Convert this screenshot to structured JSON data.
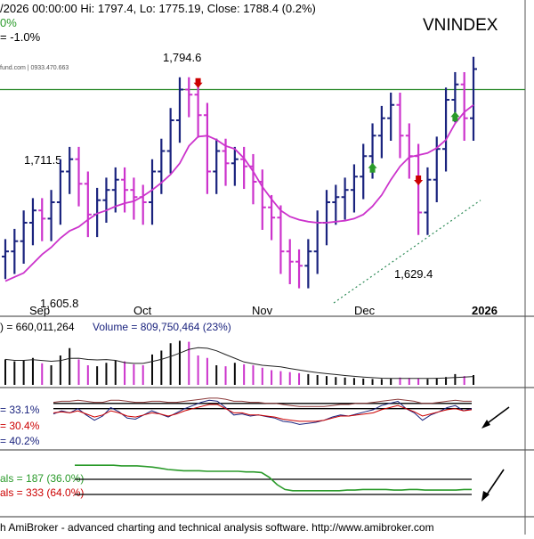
{
  "header": {
    "ohlc_text": "/2026 00:00:00 Hi: 1797.4, Lo: 1775.19, Close: 1788.4 (0.2%)",
    "ohlc_suffix": "0%",
    "change_text": "= -1.0%",
    "source_text": "fund.com | 0933.470.663",
    "ticker": "VNINDEX"
  },
  "footer": {
    "text": "h AmiBroker - advanced charting and technical analysis software. http://www.amibroker.com"
  },
  "colors": {
    "up_bar": "#1a237e",
    "down_bar": "#cc33cc",
    "ma_line": "#cc33cc",
    "resistance": "#2e8b2e",
    "trend": "#2e8b57",
    "arrow_down": "#cc0000",
    "arrow_up": "#2a9a2a",
    "volume_bar": "#0a0a0a",
    "volume_avg": "#222222",
    "panel_sep": "#333333"
  },
  "chart_data": [
    {
      "type": "candlestick",
      "title": "VNINDEX",
      "x_labels": [
        "Sep",
        "Oct",
        "Nov",
        "Dec",
        "2026"
      ],
      "ylim": [
        1560,
        1840
      ],
      "resistance_level": 1770,
      "annotations": [
        "1,794.6",
        "1,711.5",
        "1,629.4",
        "1,605.8"
      ],
      "ma_values": [
        1583,
        1587,
        1591,
        1600,
        1609,
        1616,
        1625,
        1632,
        1636,
        1643,
        1649,
        1652,
        1656,
        1659,
        1661,
        1666,
        1672,
        1679,
        1687,
        1698,
        1715,
        1724,
        1725,
        1721,
        1715,
        1712,
        1703,
        1690,
        1675,
        1663,
        1652,
        1646,
        1643,
        1641,
        1640,
        1640,
        1641,
        1642,
        1644,
        1648,
        1656,
        1667,
        1682,
        1695,
        1704,
        1706,
        1708,
        1713,
        1721,
        1737,
        1748,
        1755
      ],
      "closes": [
        1612,
        1622,
        1640,
        1652,
        1644,
        1660,
        1690,
        1702,
        1678,
        1648,
        1662,
        1672,
        1682,
        1672,
        1665,
        1660,
        1690,
        1710,
        1740,
        1770,
        1765,
        1745,
        1690,
        1710,
        1698,
        1702,
        1695,
        1680,
        1655,
        1645,
        1612,
        1602,
        1598,
        1612,
        1640,
        1660,
        1665,
        1672,
        1685,
        1705,
        1725,
        1742,
        1755,
        1725,
        1705,
        1650,
        1682,
        1712,
        1760,
        1775,
        1742,
        1790
      ],
      "arrows": [
        {
          "dir": "down",
          "index": 21
        },
        {
          "dir": "up",
          "index": 40
        },
        {
          "dir": "down",
          "index": 45
        },
        {
          "dir": "up",
          "index": 49
        }
      ]
    },
    {
      "type": "bar",
      "title": "Volume",
      "legend_left": ") = 660,011,264",
      "legend_label": "Volume = 809,750,464 (23%)",
      "volume_values": [
        52,
        48,
        50,
        55,
        44,
        40,
        60,
        75,
        52,
        40,
        38,
        45,
        50,
        48,
        42,
        40,
        62,
        70,
        85,
        90,
        88,
        60,
        55,
        40,
        38,
        45,
        42,
        40,
        35,
        30,
        28,
        26,
        24,
        22,
        20,
        18,
        16,
        15,
        14,
        13,
        12,
        12,
        13,
        15,
        14,
        13,
        12,
        14,
        16,
        22,
        18,
        20
      ]
    },
    {
      "type": "line",
      "title": "Oscillators",
      "legend": [
        "= 33.1%",
        "= 30.4%",
        "= 40.2%"
      ],
      "series": [
        {
          "values": [
            60,
            66,
            62,
            70,
            58,
            48,
            56,
            72,
            64,
            52,
            50,
            58,
            66,
            60,
            54,
            62,
            70,
            76,
            82,
            86,
            84,
            72,
            58,
            60,
            56,
            58,
            55,
            52,
            46,
            44,
            40,
            42,
            44,
            48,
            54,
            58,
            56,
            60,
            64,
            68,
            76,
            80,
            84,
            70,
            62,
            48,
            58,
            64,
            72,
            76,
            66,
            70
          ]
        },
        {
          "values": [
            62,
            64,
            62,
            66,
            60,
            54,
            58,
            66,
            62,
            56,
            54,
            58,
            62,
            60,
            56,
            60,
            66,
            70,
            74,
            78,
            78,
            70,
            62,
            62,
            58,
            58,
            56,
            54,
            50,
            48,
            46,
            46,
            46,
            48,
            52,
            56,
            56,
            58,
            60,
            62,
            68,
            72,
            76,
            70,
            64,
            56,
            60,
            64,
            68,
            70,
            66,
            68
          ]
        },
        {
          "values": [
            82,
            84,
            84,
            86,
            84,
            82,
            82,
            86,
            86,
            84,
            82,
            82,
            84,
            84,
            82,
            82,
            84,
            86,
            88,
            90,
            90,
            88,
            84,
            84,
            82,
            82,
            80,
            80,
            78,
            76,
            74,
            74,
            74,
            74,
            76,
            78,
            78,
            80,
            80,
            82,
            84,
            86,
            88,
            86,
            84,
            80,
            80,
            82,
            84,
            86,
            84,
            84
          ]
        }
      ]
    },
    {
      "type": "line",
      "title": "Breadth",
      "legend": [
        "als = 187 (36.0%)",
        "als = 333 (64.0%)"
      ],
      "values": [
        82,
        82,
        82,
        82,
        82,
        82,
        81,
        81,
        81,
        80,
        79,
        77,
        75,
        74,
        73,
        73,
        73,
        72,
        72,
        72,
        72,
        72,
        71,
        71,
        70,
        62,
        50,
        42,
        40,
        40,
        40,
        40,
        40,
        40,
        40,
        41,
        41,
        42,
        42,
        42,
        42,
        41,
        41,
        42,
        42,
        41,
        41,
        41,
        41,
        41,
        42,
        42
      ]
    }
  ]
}
